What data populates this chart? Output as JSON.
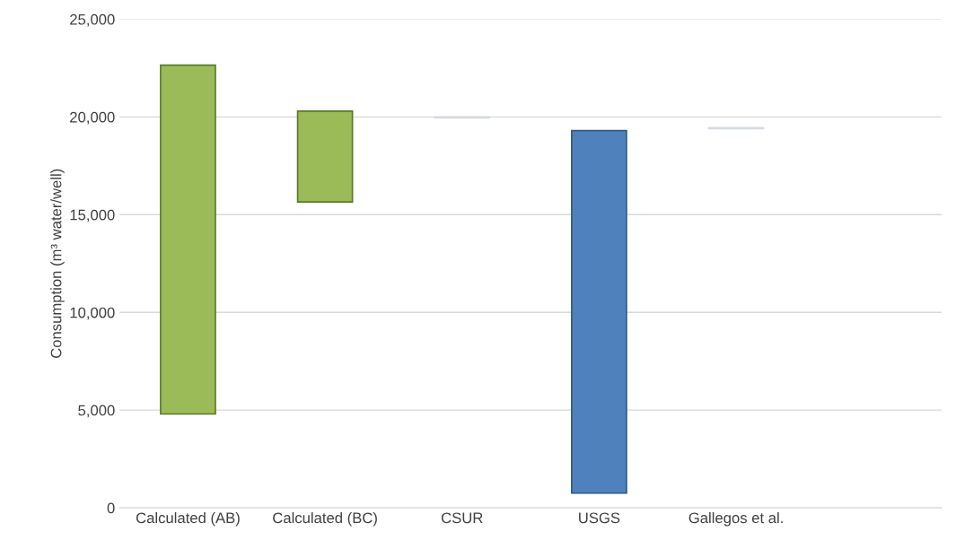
{
  "chart_data": {
    "type": "bar",
    "ylabel": "Consumption (m³ water/well)",
    "categories": [
      "Calculated (AB)",
      "Calculated (BC)",
      "CSUR",
      "USGS",
      "Gallegos et al.",
      null
    ],
    "base": [
      4800,
      15650,
      19950,
      750,
      19400,
      null
    ],
    "values": [
      17850,
      4650,
      50,
      18550,
      50,
      null
    ],
    "colors": [
      "#9bbb59",
      "#9bbb59",
      "#d5dbe4",
      "#4f81bd",
      "#d5dbe4",
      null
    ],
    "ylim": [
      0,
      25000
    ],
    "yticks": [
      {
        "value": 0,
        "label": "0"
      },
      {
        "value": 5000,
        "label": "5,000"
      },
      {
        "value": 10000,
        "label": "10,000"
      },
      {
        "value": 15000,
        "label": "15,000"
      },
      {
        "value": 20000,
        "label": "20,000"
      },
      {
        "value": 25000,
        "label": "25,000"
      }
    ],
    "grid": "y"
  }
}
